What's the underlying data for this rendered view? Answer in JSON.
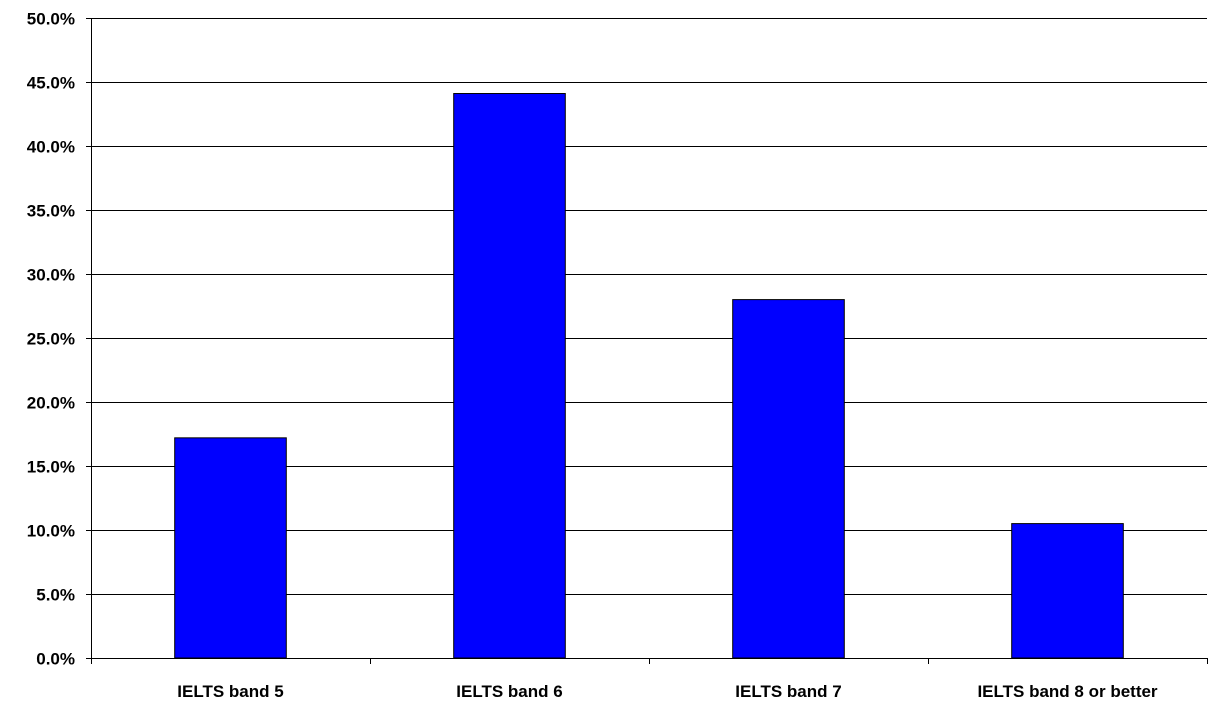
{
  "chart_data": {
    "type": "bar",
    "title": "",
    "xlabel": "",
    "ylabel": "",
    "categories": [
      "IELTS band 5",
      "IELTS band 6",
      "IELTS band 7",
      "IELTS band 8 or better"
    ],
    "values": [
      17.2,
      44.1,
      28.0,
      10.5
    ],
    "ylim": [
      0,
      50
    ],
    "y_ticks": [
      0,
      5,
      10,
      15,
      20,
      25,
      30,
      35,
      40,
      45,
      50
    ],
    "y_tick_format": "percent_one_decimal",
    "grid": true,
    "legend": "none",
    "bar_color": "#0000ff",
    "bar_edge_color": "#000000",
    "gridline_color": "#000000"
  }
}
